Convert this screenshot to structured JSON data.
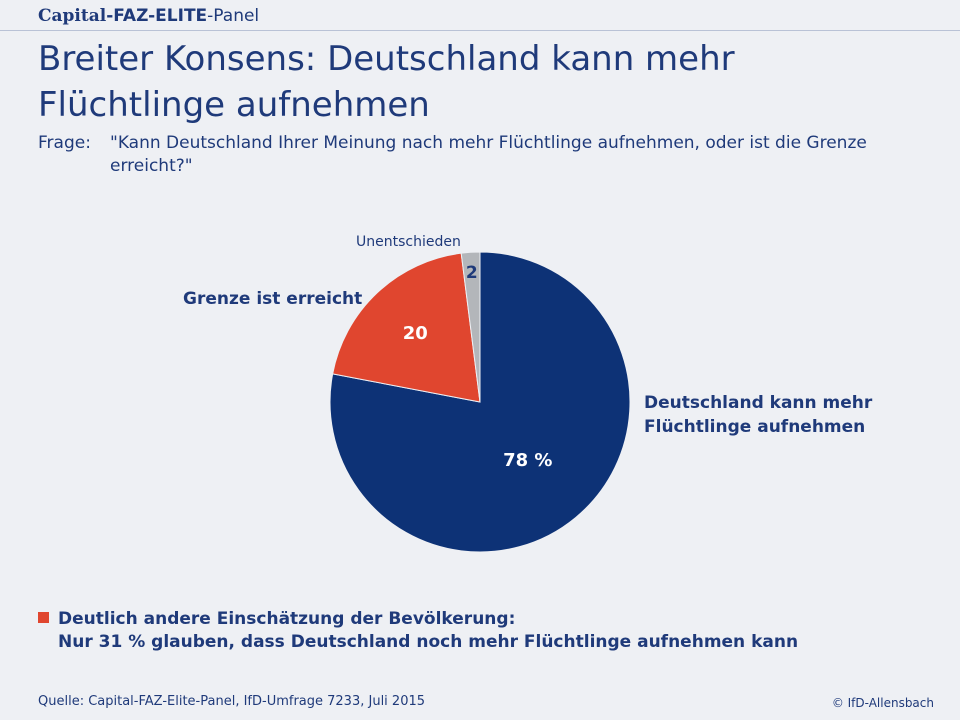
{
  "brand": {
    "capital": "Capital",
    "faz": "-FAZ-ELITE",
    "rest": "-Panel"
  },
  "title": "Breiter Konsens: Deutschland kann mehr Flüchtlinge aufnehmen",
  "question": {
    "label": "Frage:",
    "text": "\"Kann Deutschland Ihrer Meinung nach mehr Flüchtlinge aufnehmen, oder ist die Grenze erreicht?\""
  },
  "chart_data": {
    "type": "pie",
    "slices": [
      {
        "label": "Deutschland kann mehr Flüchtlinge aufnehmen",
        "value": 78,
        "value_label": "78 %",
        "color": "#0d3276"
      },
      {
        "label": "Grenze ist erreicht",
        "value": 20,
        "value_label": "20",
        "color": "#e0462f"
      },
      {
        "label": "Unentschieden",
        "value": 2,
        "value_label": "2",
        "color": "#b3b6ba"
      }
    ]
  },
  "footnote": {
    "line1": "Deutlich andere Einschätzung der Bevölkerung:",
    "line2": "Nur 31 % glauben, dass Deutschland noch mehr Flüchtlinge aufnehmen kann",
    "marker_color": "#e0462f"
  },
  "source": "Quelle: Capital-FAZ-Elite-Panel, IfD-Umfrage 7233, Juli 2015",
  "copyright": "© IfD-Allensbach"
}
